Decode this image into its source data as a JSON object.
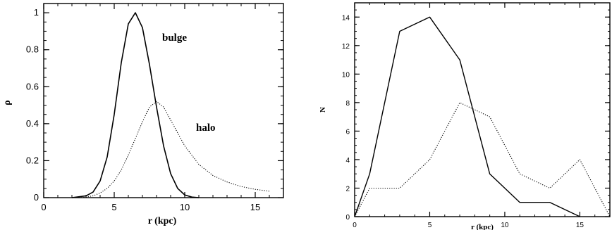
{
  "chart_data": [
    {
      "type": "line",
      "xlabel": "r (kpc)",
      "ylabel": "ρ",
      "xlim": [
        0,
        17
      ],
      "ylim": [
        0,
        1.05
      ],
      "xticks": [
        "0",
        "5",
        "10",
        "15"
      ],
      "yticks": [
        "0",
        "0.2",
        "0.4",
        "0.6",
        "0.8",
        "1"
      ],
      "grid": false,
      "annotations": [
        "bulge",
        "halo"
      ],
      "series": [
        {
          "name": "bulge",
          "style": "solid",
          "x": [
            2.0,
            3.0,
            3.5,
            4.0,
            4.5,
            5.0,
            5.5,
            6.0,
            6.5,
            7.0,
            7.5,
            8.0,
            8.5,
            9.0,
            9.5,
            10.0,
            10.5,
            11.0
          ],
          "y": [
            0.0,
            0.01,
            0.03,
            0.09,
            0.22,
            0.45,
            0.73,
            0.94,
            1.0,
            0.92,
            0.72,
            0.49,
            0.28,
            0.13,
            0.05,
            0.015,
            0.003,
            0.0
          ]
        },
        {
          "name": "halo",
          "style": "dotted",
          "x": [
            2.5,
            3.0,
            3.5,
            4.0,
            4.5,
            5.0,
            5.5,
            6.0,
            6.5,
            7.0,
            7.5,
            8.0,
            8.5,
            9.0,
            9.5,
            10.0,
            10.5,
            11.0,
            12.0,
            13.0,
            14.0,
            15.0,
            16.0
          ],
          "y": [
            0.0,
            0.003,
            0.01,
            0.025,
            0.05,
            0.09,
            0.15,
            0.23,
            0.32,
            0.41,
            0.49,
            0.52,
            0.49,
            0.42,
            0.35,
            0.28,
            0.23,
            0.18,
            0.12,
            0.085,
            0.06,
            0.045,
            0.035
          ]
        }
      ]
    },
    {
      "type": "line",
      "xlabel": "r (kpc)",
      "ylabel": "N",
      "xlim": [
        0,
        17
      ],
      "ylim": [
        0,
        15
      ],
      "xticks": [
        "0",
        "5",
        "10",
        "15"
      ],
      "yticks": [
        "0",
        "2",
        "4",
        "6",
        "8",
        "10",
        "12",
        "14"
      ],
      "grid": false,
      "series": [
        {
          "style": "solid",
          "x": [
            0,
            1,
            3,
            5,
            7,
            9,
            11,
            13,
            15
          ],
          "y": [
            0,
            3,
            13,
            14,
            11,
            3,
            1,
            1,
            0
          ]
        },
        {
          "style": "dotted",
          "x": [
            0,
            1,
            3,
            5,
            7,
            9,
            11,
            13,
            15,
            17
          ],
          "y": [
            0,
            2,
            2,
            4,
            8,
            7,
            3,
            2,
            4,
            0
          ]
        }
      ]
    }
  ]
}
